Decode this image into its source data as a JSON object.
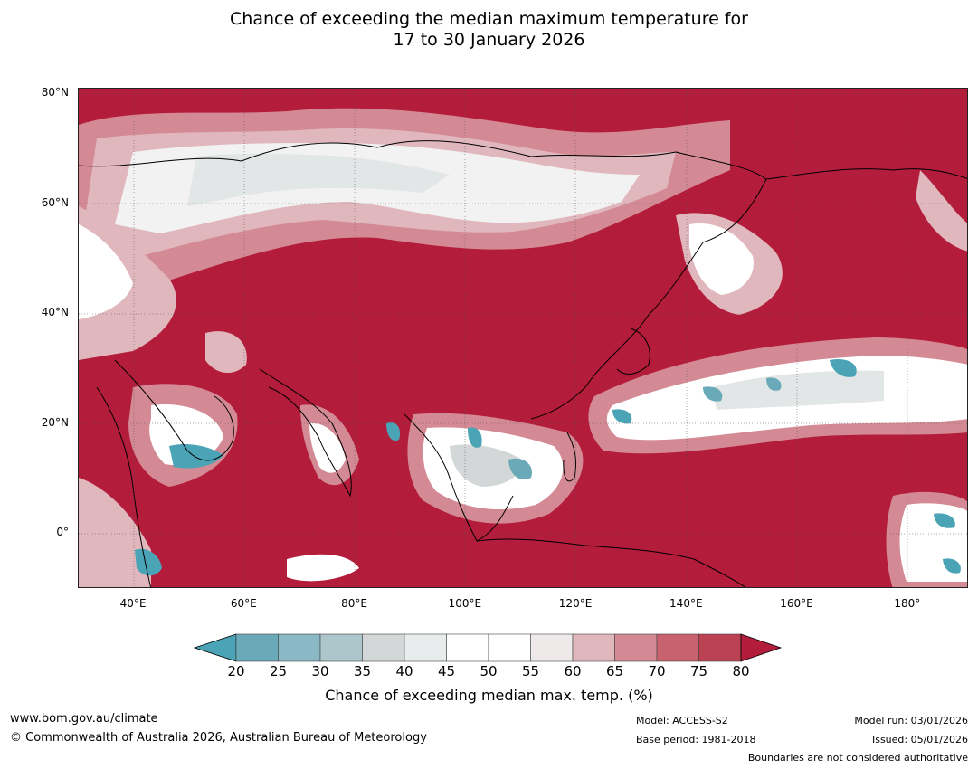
{
  "title": {
    "line1": "Chance of exceeding the median maximum temperature for",
    "line2": "17 to 30 January 2026"
  },
  "axes": {
    "lat_labels": [
      {
        "label": "80°N",
        "lat": 80
      },
      {
        "label": "60°N",
        "lat": 60
      },
      {
        "label": "40°N",
        "lat": 40
      },
      {
        "label": "20°N",
        "lat": 20
      },
      {
        "label": "0°",
        "lat": 0
      }
    ],
    "lon_labels": [
      {
        "label": "40°E",
        "lon": 40
      },
      {
        "label": "60°E",
        "lon": 60
      },
      {
        "label": "80°E",
        "lon": 80
      },
      {
        "label": "100°E",
        "lon": 100
      },
      {
        "label": "120°E",
        "lon": 120
      },
      {
        "label": "140°E",
        "lon": 140
      },
      {
        "label": "160°E",
        "lon": 160
      },
      {
        "label": "180°",
        "lon": 180
      }
    ],
    "lon_range": [
      30,
      191
    ],
    "lat_range": [
      -10,
      81
    ]
  },
  "colorbar": {
    "ticks": [
      "20",
      "25",
      "30",
      "35",
      "40",
      "45",
      "50",
      "55",
      "60",
      "65",
      "70",
      "75",
      "80"
    ],
    "colors": [
      "#6aa9b8",
      "#8ab8c4",
      "#adc6cb",
      "#d3d7d7",
      "#e8eced",
      "#ffffff",
      "#ffffff",
      "#eeeaea",
      "#e0b7bd",
      "#d48a95",
      "#c8626e",
      "#bb4252"
    ],
    "under_color": "#4aa4b6",
    "over_color": "#b31c3a",
    "label": "Chance of exceeding median max. temp. (%)"
  },
  "footer": {
    "url": "www.bom.gov.au/climate",
    "copyright": "© Commonwealth of Australia 2026, Australian Bureau of Meteorology",
    "model": "Model: ACCESS-S2",
    "base_period": "Base period: 1981-2018",
    "model_run": "Model run: 03/01/2026",
    "issued": "Issued: 05/01/2026",
    "disclaimer": "Boundaries are not considered authoritative"
  }
}
